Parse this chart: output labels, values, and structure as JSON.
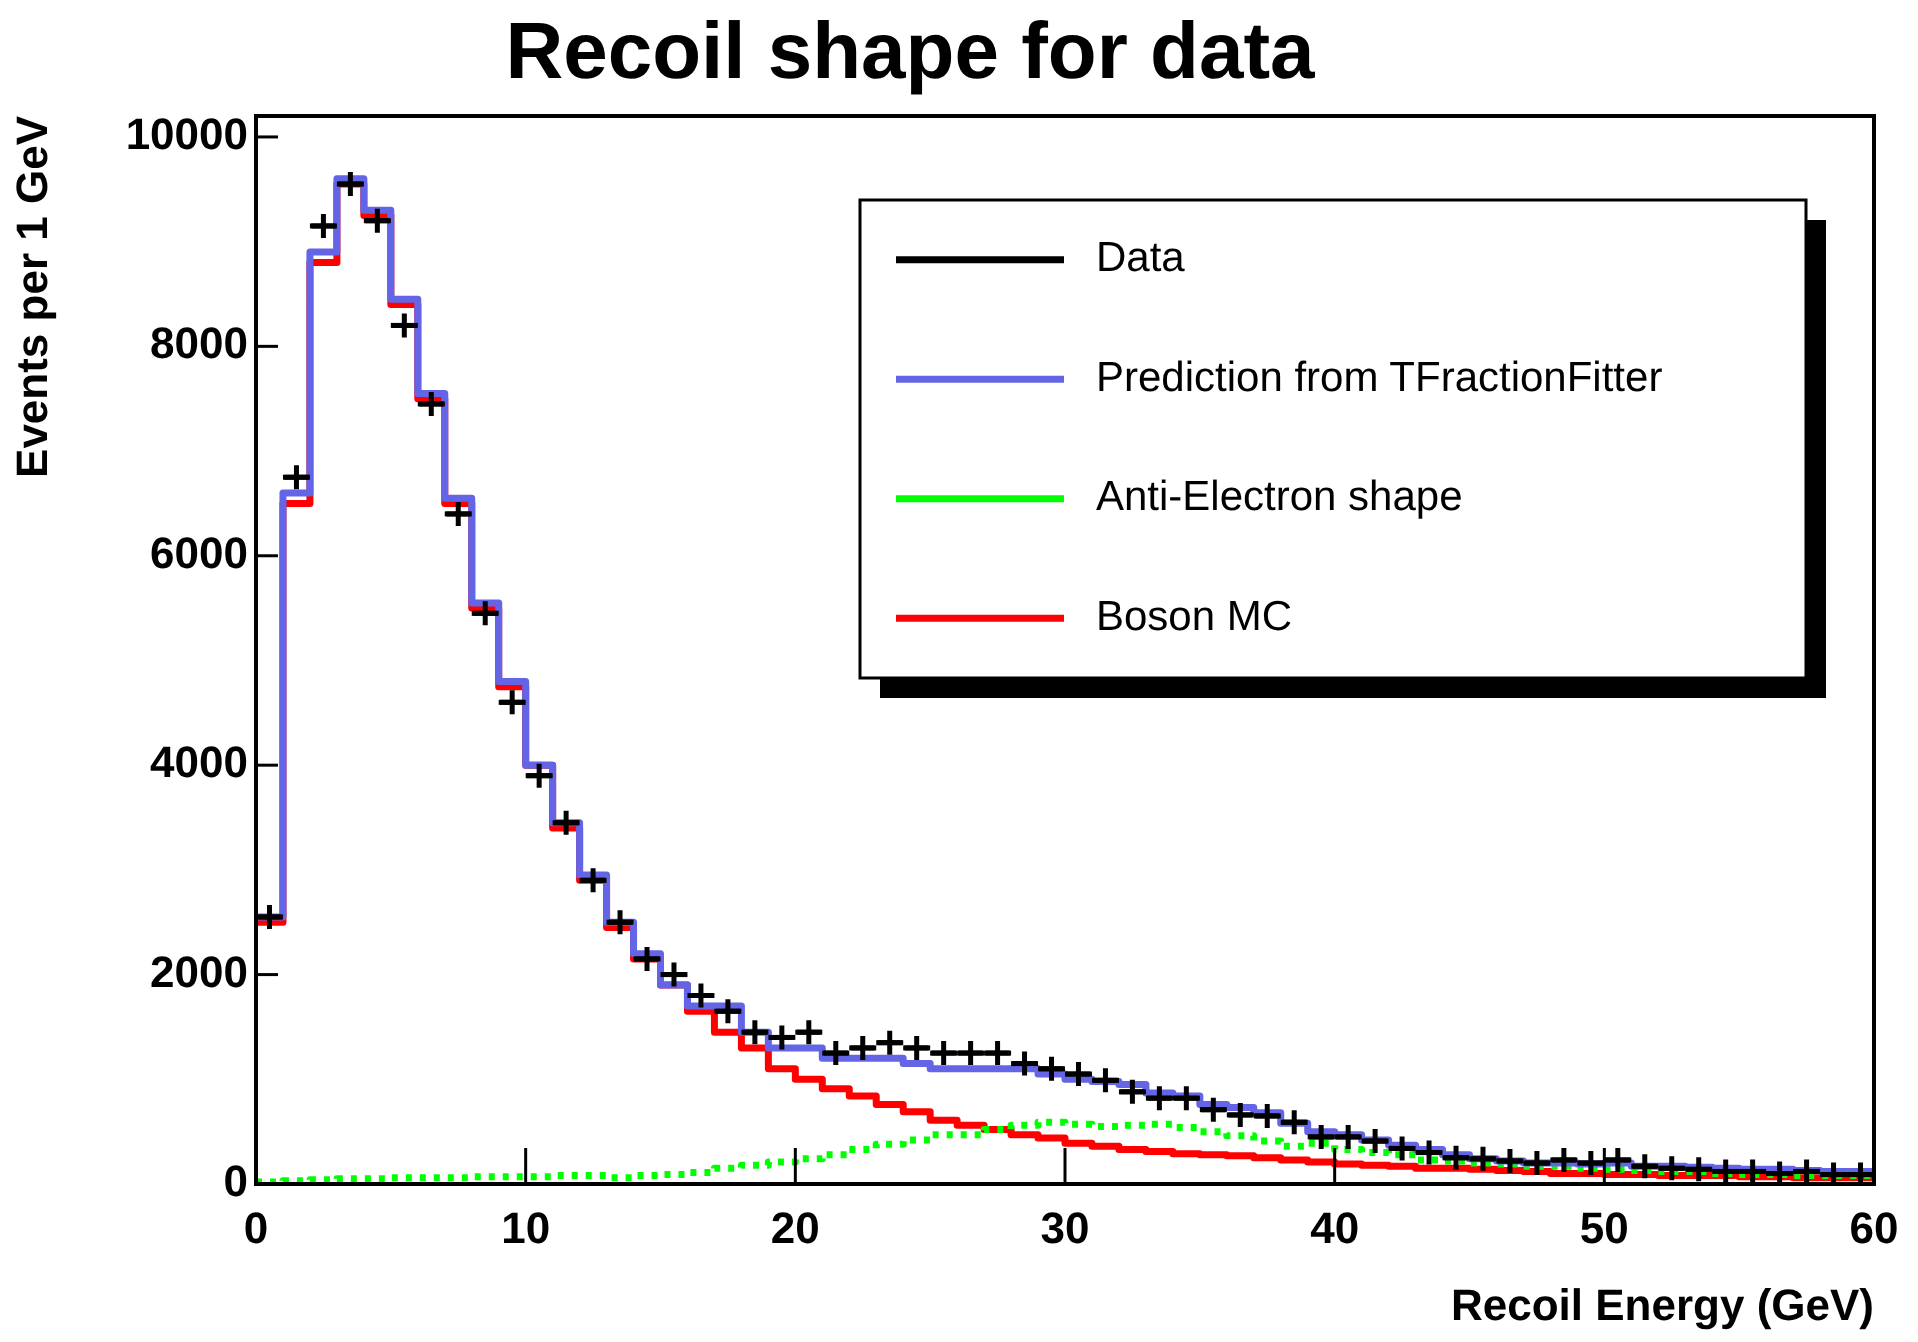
{
  "chart_data": {
    "type": "histogram",
    "title": "Recoil shape for data",
    "xlabel": "Recoil Energy (GeV)",
    "ylabel": "Events per 1 GeV",
    "legend": "top right",
    "bins": [
      0,
      1,
      2,
      3,
      4,
      5,
      6,
      7,
      8,
      9,
      10,
      11,
      12,
      13,
      14,
      15,
      16,
      17,
      18,
      19,
      20,
      21,
      22,
      23,
      24,
      25,
      26,
      27,
      28,
      29,
      30,
      31,
      32,
      33,
      34,
      35,
      36,
      37,
      38,
      39,
      40,
      41,
      42,
      43,
      44,
      45,
      46,
      47,
      48,
      49,
      50,
      51,
      52,
      53,
      54,
      55,
      56,
      57,
      58,
      59,
      60
    ],
    "xlim": [
      0,
      60
    ],
    "xticks": [
      0,
      10,
      20,
      30,
      40,
      50,
      60
    ],
    "ylim": [
      0,
      10200
    ],
    "yticks": [
      0,
      2000,
      4000,
      6000,
      8000,
      10000
    ],
    "series": [
      {
        "name": "Data",
        "type": "scatter",
        "marker": "cross",
        "color": "#000000",
        "x": [
          0.5,
          1.5,
          2.5,
          3.5,
          4.5,
          5.5,
          6.5,
          7.5,
          8.5,
          9.5,
          10.5,
          11.5,
          12.5,
          13.5,
          14.5,
          15.5,
          16.5,
          17.5,
          18.5,
          19.5,
          20.5,
          21.5,
          22.5,
          23.5,
          24.5,
          25.5,
          26.5,
          27.5,
          28.5,
          29.5,
          30.5,
          31.5,
          32.5,
          33.5,
          34.5,
          35.5,
          36.5,
          37.5,
          38.5,
          39.5,
          40.5,
          41.5,
          42.5,
          43.5,
          44.5,
          45.5,
          46.5,
          47.5,
          48.5,
          49.5,
          50.5,
          51.5,
          52.5,
          53.5,
          54.5,
          55.5,
          56.5,
          57.5,
          58.5,
          59.5
        ],
        "values": [
          2550,
          6750,
          9150,
          9550,
          9200,
          8200,
          7450,
          6400,
          5450,
          4600,
          3900,
          3450,
          2900,
          2500,
          2150,
          2000,
          1800,
          1650,
          1450,
          1400,
          1450,
          1250,
          1300,
          1350,
          1300,
          1250,
          1250,
          1250,
          1150,
          1100,
          1050,
          990,
          880,
          820,
          820,
          710,
          660,
          650,
          590,
          450,
          450,
          410,
          340,
          300,
          250,
          240,
          220,
          200,
          230,
          200,
          230,
          170,
          150,
          140,
          120,
          120,
          100,
          120,
          90,
          90
        ],
        "xerrors": [
          0.5,
          0.5,
          0.5,
          0.5,
          0.5,
          0.5,
          0.5,
          0.5,
          0.5,
          0.5,
          0.5,
          0.5,
          0.5,
          0.5,
          0.5,
          0.5,
          0.5,
          0.5,
          0.5,
          0.5,
          0.5,
          0.5,
          0.5,
          0.5,
          0.5,
          0.5,
          0.5,
          0.5,
          0.5,
          0.5,
          0.5,
          0.5,
          0.5,
          0.5,
          0.5,
          0.5,
          0.5,
          0.5,
          0.5,
          0.5,
          0.5,
          0.5,
          0.5,
          0.5,
          0.5,
          0.5,
          0.5,
          0.5,
          0.5,
          0.5,
          0.5,
          0.5,
          0.5,
          0.5,
          0.5,
          0.5,
          0.5,
          0.5,
          0.5,
          0.5
        ]
      },
      {
        "name": "Prediction from TFractionFitter",
        "color": "#6464e6",
        "values": [
          2550,
          6600,
          8900,
          9600,
          9300,
          8450,
          7550,
          6550,
          5550,
          4800,
          4000,
          3450,
          2950,
          2500,
          2200,
          1900,
          1700,
          1700,
          1450,
          1300,
          1300,
          1200,
          1200,
          1200,
          1150,
          1100,
          1100,
          1100,
          1100,
          1050,
          1000,
          980,
          950,
          870,
          840,
          760,
          730,
          680,
          580,
          500,
          470,
          420,
          370,
          330,
          280,
          240,
          220,
          200,
          200,
          190,
          200,
          170,
          170,
          160,
          150,
          140,
          140,
          130,
          120,
          120
        ]
      },
      {
        "name": "Anti-Electron shape",
        "color": "#00ff00",
        "line_style": "dotted",
        "values": [
          20,
          30,
          40,
          50,
          50,
          60,
          60,
          60,
          70,
          70,
          70,
          80,
          80,
          60,
          80,
          90,
          110,
          150,
          180,
          210,
          240,
          280,
          330,
          380,
          420,
          470,
          470,
          520,
          560,
          590,
          570,
          550,
          560,
          570,
          540,
          500,
          460,
          410,
          360,
          390,
          330,
          300,
          280,
          230,
          220,
          200,
          190,
          170,
          170,
          150,
          140,
          130,
          120,
          120,
          100,
          90,
          90,
          80,
          80,
          80
        ]
      },
      {
        "name": "Boson MC",
        "color": "#ff0000",
        "values": [
          2500,
          6500,
          8800,
          9550,
          9250,
          8400,
          7500,
          6500,
          5500,
          4750,
          4000,
          3400,
          2900,
          2450,
          2150,
          1900,
          1650,
          1450,
          1300,
          1100,
          1000,
          910,
          840,
          760,
          690,
          610,
          560,
          520,
          470,
          440,
          390,
          360,
          330,
          310,
          290,
          280,
          270,
          250,
          230,
          210,
          190,
          180,
          170,
          150,
          150,
          140,
          130,
          120,
          100,
          100,
          90,
          90,
          80,
          80,
          80,
          70,
          70,
          60,
          60,
          60
        ]
      }
    ]
  }
}
